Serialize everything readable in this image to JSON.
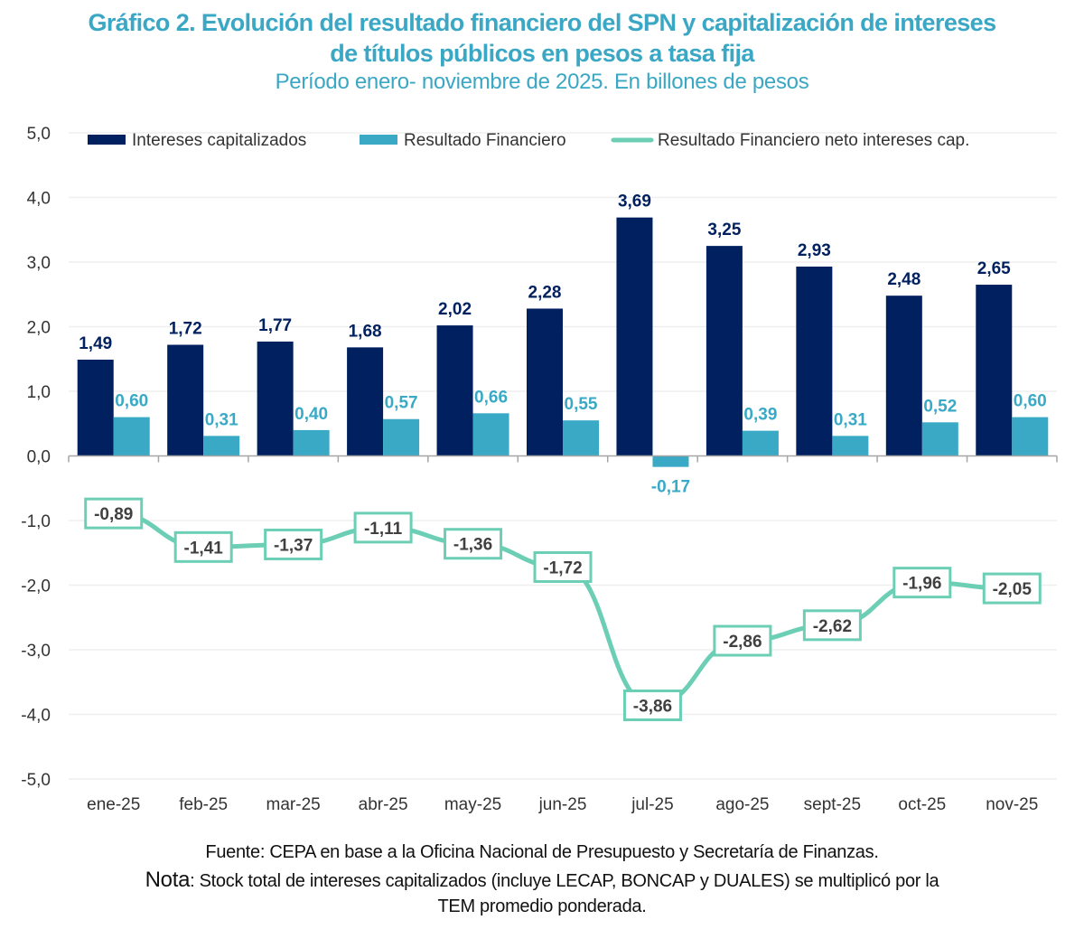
{
  "chart_data": {
    "type": "bar",
    "title": "Gráfico 2. Evolución del resultado financiero del SPN y capitalización de intereses de títulos públicos en pesos a tasa fija",
    "title_line1": "Gráfico 2. Evolución del resultado financiero del SPN y capitalización de intereses",
    "title_line2": "de títulos públicos en pesos a tasa fija",
    "subtitle": "Período enero- noviembre de 2025. En billones de pesos",
    "xlabel": "",
    "ylabel": "",
    "ylim": [
      -5,
      5
    ],
    "yticks": [
      5,
      4,
      3,
      2,
      1,
      0,
      -1,
      -2,
      -3,
      -4,
      -5
    ],
    "ytick_labels": [
      "5,0",
      "4,0",
      "3,0",
      "2,0",
      "1,0",
      "0,0",
      "-1,0",
      "-2,0",
      "-3,0",
      "-4,0",
      "-5,0"
    ],
    "grid": true,
    "legend_position": "top",
    "categories": [
      "ene-25",
      "feb-25",
      "mar-25",
      "abr-25",
      "may-25",
      "jun-25",
      "jul-25",
      "ago-25",
      "sept-25",
      "oct-25",
      "nov-25"
    ],
    "series": [
      {
        "name": "Intereses capitalizados",
        "type": "bar",
        "color": "#01205f",
        "values": [
          1.49,
          1.72,
          1.77,
          1.68,
          2.02,
          2.28,
          3.69,
          3.25,
          2.93,
          2.48,
          2.65
        ],
        "labels": [
          "1,49",
          "1,72",
          "1,77",
          "1,68",
          "2,02",
          "2,28",
          "3,69",
          "3,25",
          "2,93",
          "2,48",
          "2,65"
        ]
      },
      {
        "name": "Resultado Financiero",
        "type": "bar",
        "color": "#39a9c6",
        "values": [
          0.6,
          0.31,
          0.4,
          0.57,
          0.66,
          0.55,
          -0.17,
          0.39,
          0.31,
          0.52,
          0.6
        ],
        "labels": [
          "0,60",
          "0,31",
          "0,40",
          "0,57",
          "0,66",
          "0,55",
          "-0,17",
          "0,39",
          "0,31",
          "0,52",
          "0,60"
        ]
      },
      {
        "name": "Resultado Financiero neto intereses cap.",
        "type": "line",
        "color": "#6ccfb5",
        "values": [
          -0.89,
          -1.41,
          -1.37,
          -1.11,
          -1.36,
          -1.72,
          -3.86,
          -2.86,
          -2.62,
          -1.96,
          -2.05
        ],
        "labels": [
          "-0,89",
          "-1,41",
          "-1,37",
          "-1,11",
          "-1,36",
          "-1,72",
          "-3,86",
          "-2,86",
          "-2,62",
          "-1,96",
          "-2,05"
        ]
      }
    ]
  },
  "footer": {
    "source": "Fuente: CEPA en base a la Oficina Nacional de Presupuesto y Secretaría de Finanzas.",
    "note_label": "Nota",
    "note_text": ": Stock total de intereses capitalizados (incluye LECAP, BONCAP y DUALES) se multiplicó por la",
    "note_text_2": "TEM promedio ponderada."
  }
}
